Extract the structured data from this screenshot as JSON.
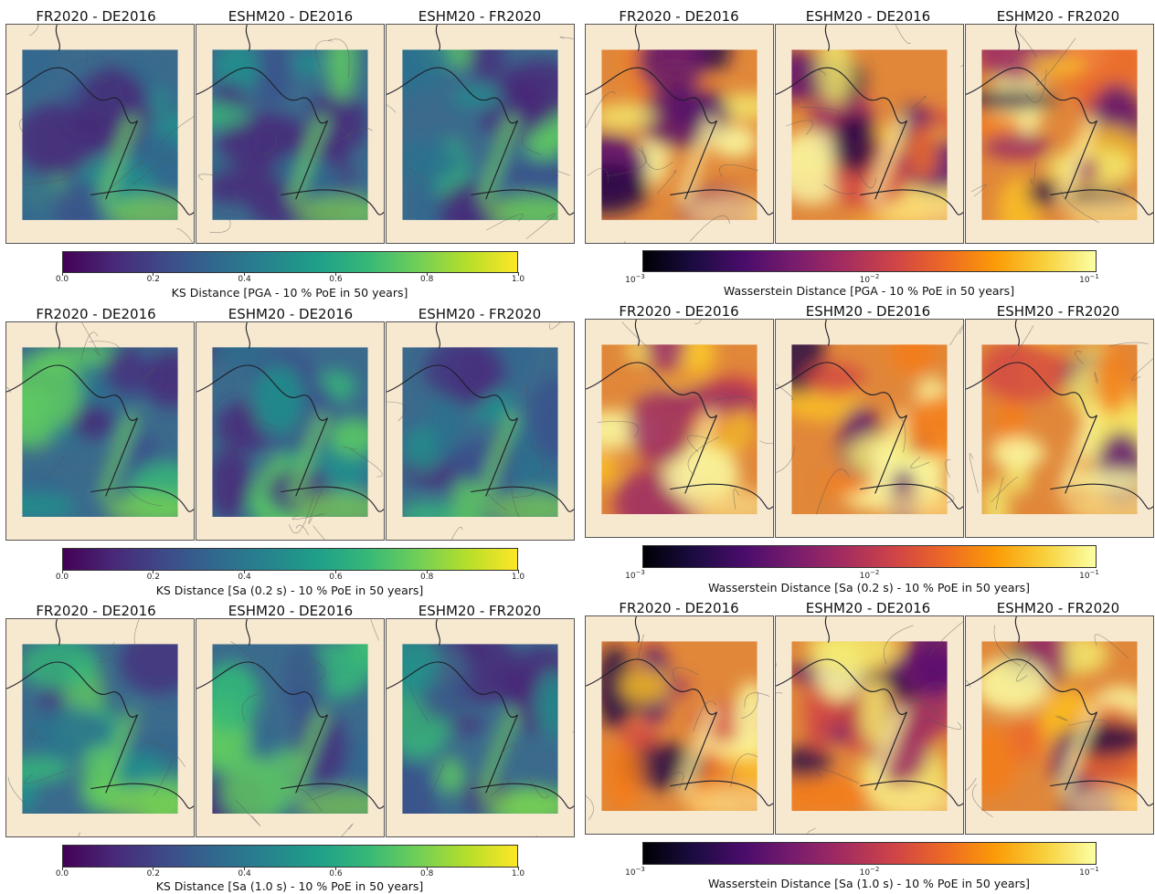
{
  "titles": {
    "fr_de": "FR2020 - DE2016",
    "eshm_de": "ESHM20 - DE2016",
    "eshm_fr": "ESHM20 - FR2020"
  },
  "ks_ticks": [
    "0.0",
    "0.2",
    "0.4",
    "0.6",
    "0.8",
    "1.0"
  ],
  "w_ticks": {
    "base": "10",
    "exps": [
      "−3",
      "−2",
      "−1"
    ]
  },
  "rows": [
    {
      "ks_label": "KS Distance [PGA - 10 % PoE in 50 years]",
      "w_label": "Wasserstein Distance [PGA - 10 % PoE in 50 years]"
    },
    {
      "ks_label": "KS Distance [Sa (0.2 s) - 10 % PoE in 50 years]",
      "w_label": "Wasserstein Distance [Sa (0.2 s) - 10 % PoE in 50 years]"
    },
    {
      "ks_label": "KS Distance [Sa (1.0 s) - 10 % PoE in 50 years]",
      "w_label": "Wasserstein Distance [Sa (1.0 s) - 10 % PoE in 50 years]"
    }
  ],
  "colors": {
    "land": "#f7e8d0",
    "border": "#1e1e2a",
    "viridis_mid": "#3e8a8c",
    "inferno_mid": "#e8913a"
  }
}
